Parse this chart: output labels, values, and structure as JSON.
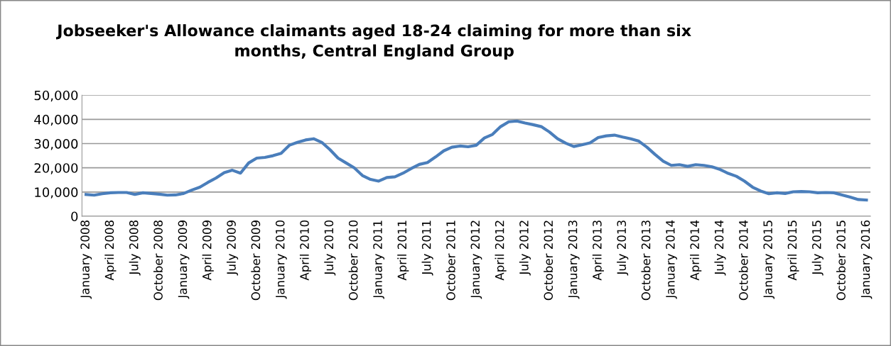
{
  "chart_data": {
    "type": "line",
    "title": "Jobseeker's Allowance claimants aged 18-24 claiming for more than six\nmonths, Central England Group",
    "categories": [
      "January 2008",
      null,
      null,
      "April 2008",
      null,
      null,
      "July 2008",
      null,
      null,
      "October 2008",
      null,
      null,
      "January 2009",
      null,
      null,
      "April 2009",
      null,
      null,
      "July 2009",
      null,
      null,
      "October 2009",
      null,
      null,
      "January 2010",
      null,
      null,
      "April 2010",
      null,
      null,
      "July 2010",
      null,
      null,
      "October 2010",
      null,
      null,
      "January 2011",
      null,
      null,
      "April 2011",
      null,
      null,
      "July 2011",
      null,
      null,
      "October 2011",
      null,
      null,
      "January 2012",
      null,
      null,
      "April 2012",
      null,
      null,
      "July 2012",
      null,
      null,
      "October 2012",
      null,
      null,
      "January 2013",
      null,
      null,
      "April 2013",
      null,
      null,
      "July 2013",
      null,
      null,
      "October 2013",
      null,
      null,
      "January 2014",
      null,
      null,
      "April 2014",
      null,
      null,
      "July 2014",
      null,
      null,
      "October 2014",
      null,
      null,
      "January 2015",
      null,
      null,
      "April 2015",
      null,
      null,
      "July 2015",
      null,
      null,
      "October 2015",
      null,
      null,
      "January 2016"
    ],
    "series": [
      {
        "color": "#4a7ebb",
        "values": [
          9000,
          8700,
          9300,
          9700,
          9800,
          9800,
          9000,
          9700,
          9400,
          9100,
          8700,
          8800,
          9400,
          10800,
          12000,
          14000,
          15800,
          18000,
          19000,
          17800,
          22000,
          24000,
          24300,
          25000,
          26000,
          29300,
          30500,
          31500,
          32000,
          30500,
          27500,
          24000,
          22000,
          20000,
          16800,
          15200,
          14500,
          16000,
          16300,
          17800,
          19700,
          21400,
          22200,
          24500,
          27000,
          28500,
          29000,
          28700,
          29300,
          32300,
          33800,
          37000,
          39000,
          39300,
          38500,
          37800,
          37000,
          34800,
          32000,
          30200,
          28800,
          29500,
          30300,
          32500,
          33200,
          33500,
          32700,
          32000,
          31000,
          28500,
          25500,
          22700,
          21000,
          21300,
          20600,
          21300,
          21000,
          20400,
          19300,
          17700,
          16500,
          14500,
          12000,
          10400,
          9300,
          9700,
          9400,
          10100,
          10200,
          10100,
          9700,
          9800,
          9700,
          8800,
          7900,
          6900,
          6700
        ]
      }
    ],
    "ylim": [
      0,
      50000
    ],
    "yticks": [
      {
        "value": 0,
        "label": "0"
      },
      {
        "value": 10000,
        "label": "10,000"
      },
      {
        "value": 20000,
        "label": "20,000"
      },
      {
        "value": 30000,
        "label": "30,000"
      },
      {
        "value": 40000,
        "label": "40,000"
      },
      {
        "value": 50000,
        "label": "50,000"
      }
    ],
    "grid": "y",
    "line_style": "solid",
    "marker": "none"
  }
}
